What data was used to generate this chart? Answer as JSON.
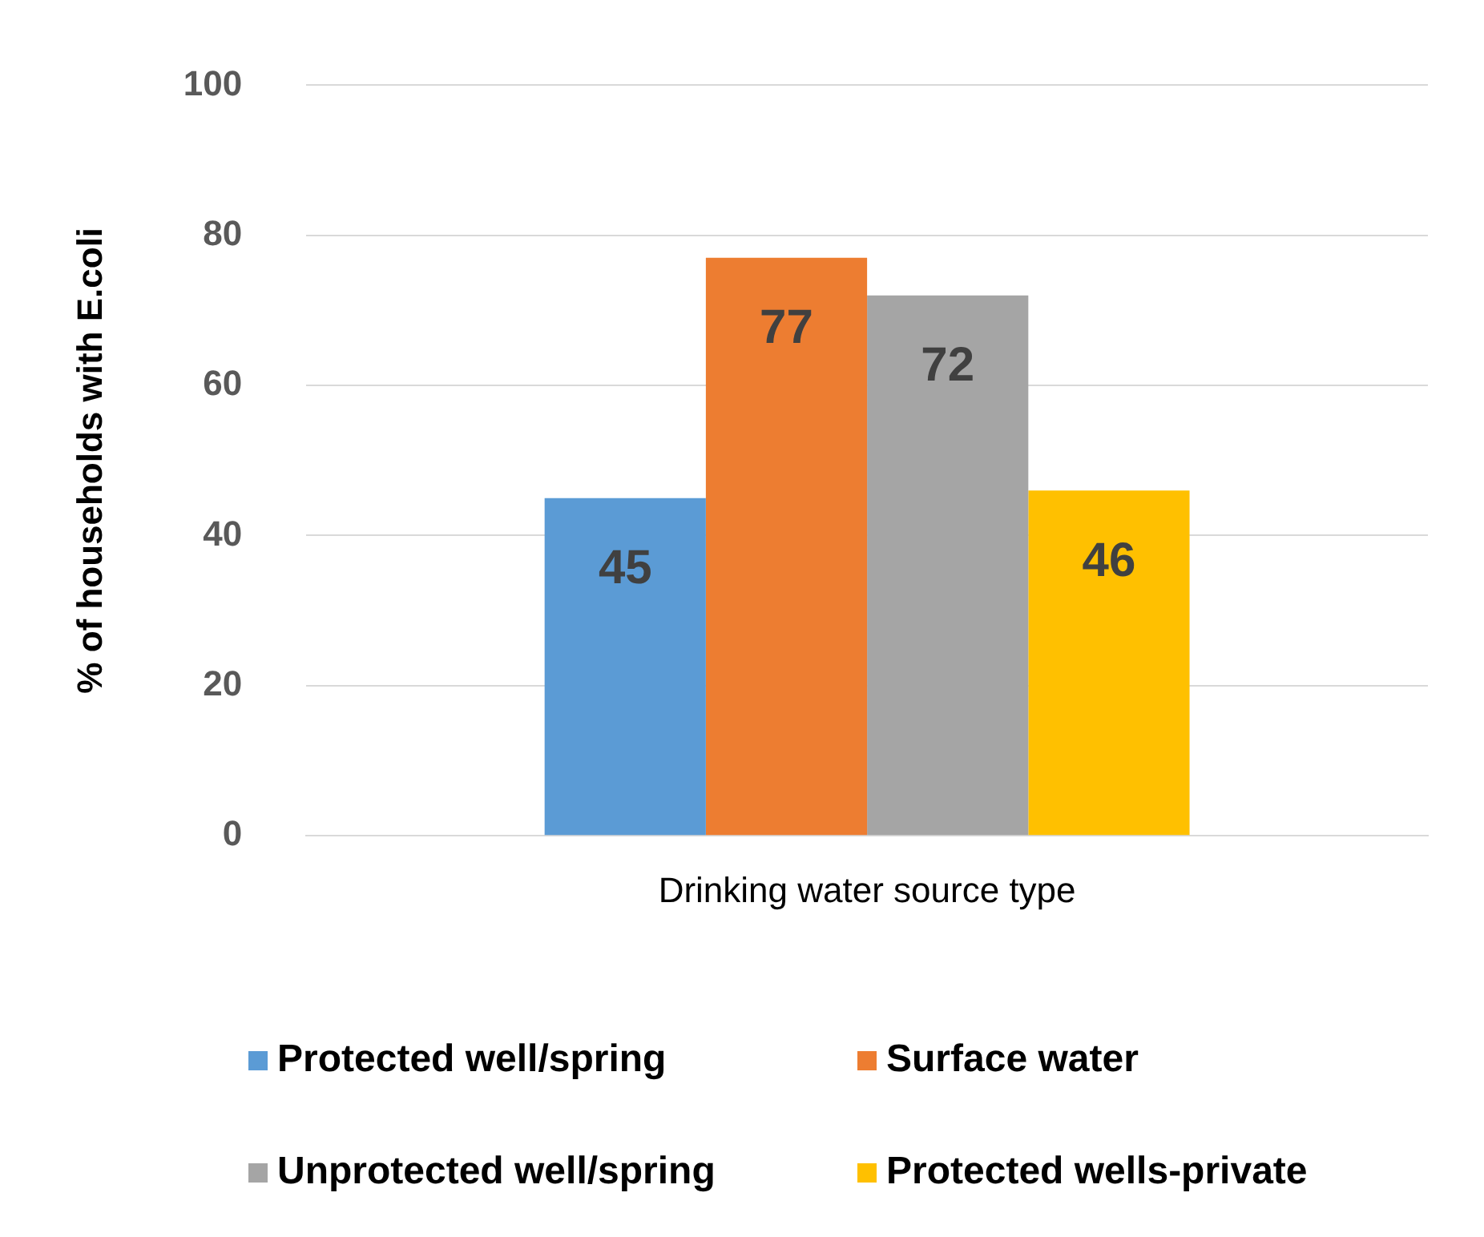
{
  "chart_data": {
    "type": "bar",
    "ylabel": "% of households with E.coli",
    "categories": [
      "Drinking water source type"
    ],
    "series": [
      {
        "name": "Protected well/spring",
        "color": "#5b9bd5",
        "values": [
          45
        ]
      },
      {
        "name": "Surface water",
        "color": "#ed7d31",
        "values": [
          77
        ]
      },
      {
        "name": "Unprotected well/spring",
        "color": "#a5a5a5",
        "values": [
          72
        ]
      },
      {
        "name": "Protected wells-private",
        "color": "#ffc000",
        "values": [
          46
        ]
      }
    ],
    "ylim": [
      0,
      100
    ],
    "yticks": [
      0,
      20,
      40,
      60,
      80,
      100
    ],
    "grid": "y",
    "legend": "bottom",
    "data_labels": true
  }
}
